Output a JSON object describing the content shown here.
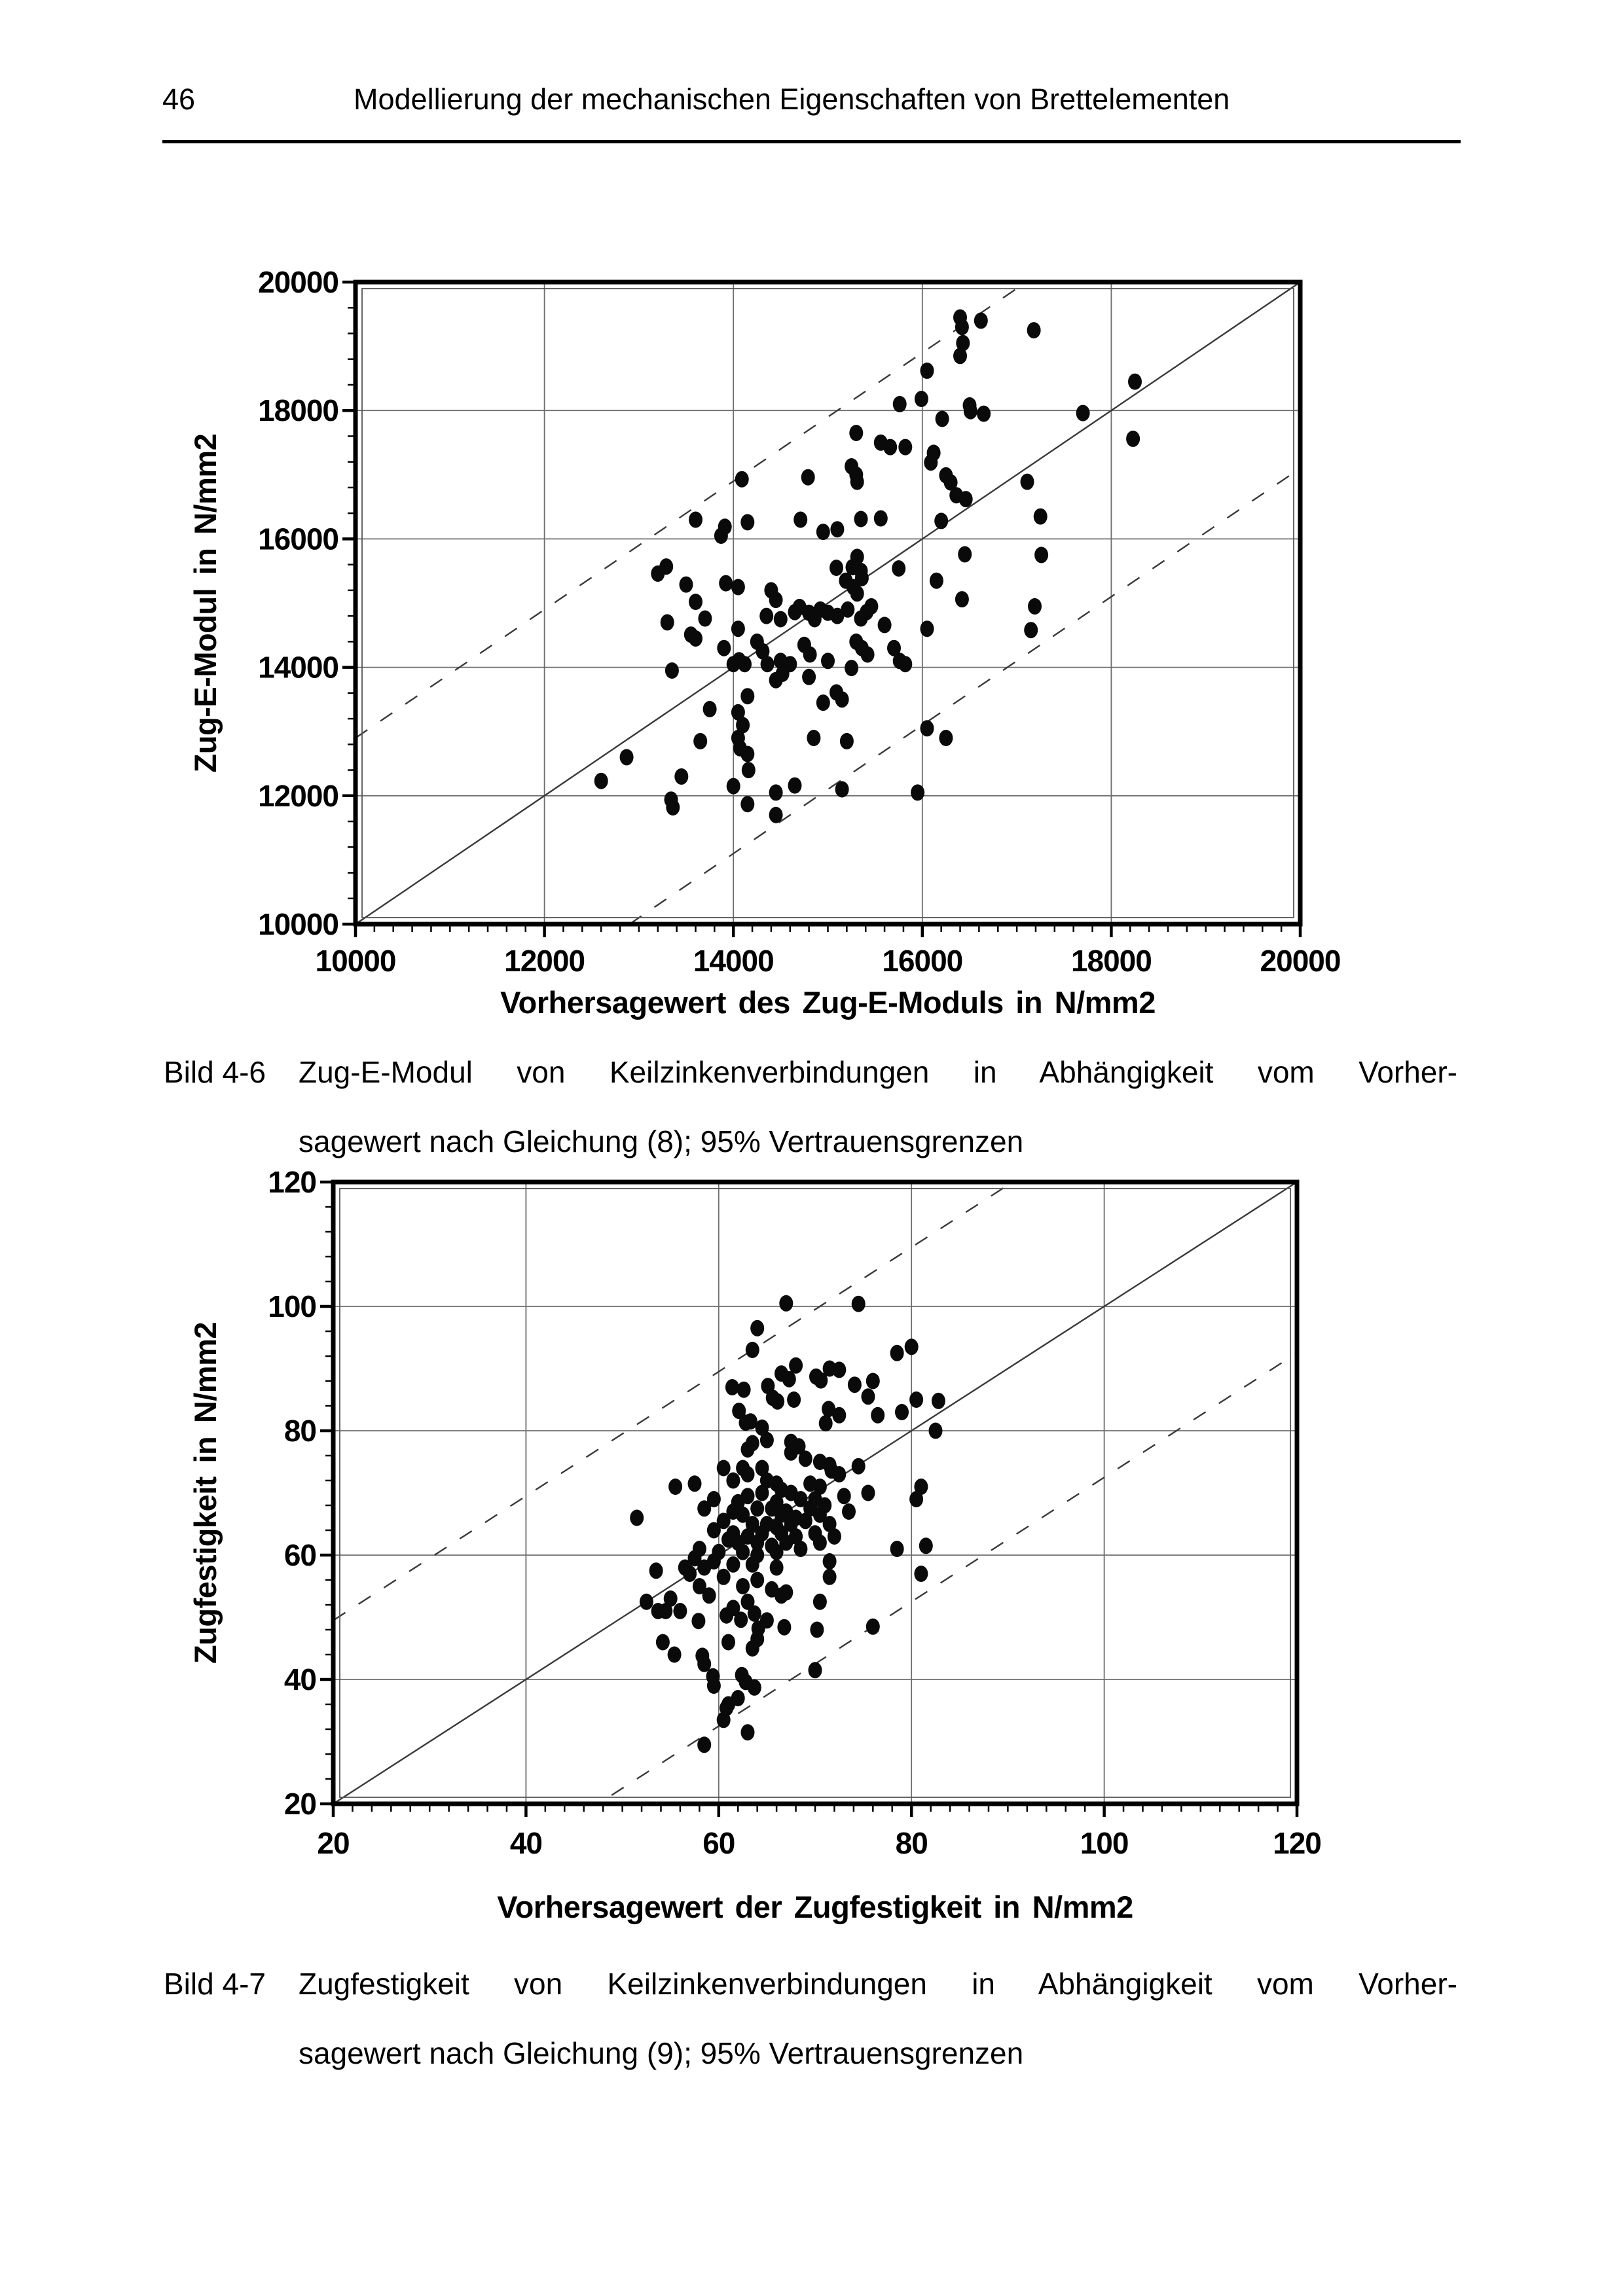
{
  "page": {
    "number": "46",
    "header_title": "Modellierung der mechanischen Eigenschaften von Brettelementen"
  },
  "figures": [
    {
      "label": "Bild 4-6",
      "caption_line1": "Zug-E-Modul von Keilzinkenverbindungen in Abhängigkeit vom Vorher-",
      "caption_line2": "sagewert nach Gleichung (8); 95% Vertrauensgrenzen"
    },
    {
      "label": "Bild 4-7",
      "caption_line1": "Zugfestigkeit von Keilzinkenverbindungen in Abhängigkeit vom Vorher-",
      "caption_line2": "sagewert nach Gleichung (9); 95% Vertrauensgrenzen"
    }
  ],
  "chart_data": [
    {
      "type": "scatter",
      "title": "",
      "xlabel": "Vorhersagewert des Zug-E-Moduls in N/mm2",
      "ylabel": "Zug-E-Modul in N/mm2",
      "xlim": [
        10000,
        20000
      ],
      "ylim": [
        10000,
        20000
      ],
      "xticks": [
        10000,
        12000,
        14000,
        16000,
        18000,
        20000
      ],
      "xtick_labels": [
        "10000",
        "12000",
        "14000",
        "16000",
        "18000",
        "20000"
      ],
      "yticks": [
        10000,
        12000,
        14000,
        16000,
        18000,
        20000
      ],
      "ytick_labels": [
        "10000",
        "12000",
        "14000",
        "16000",
        "18000",
        "20000"
      ],
      "x_minor_divisions": 10,
      "y_minor_divisions": 5,
      "grid": true,
      "legend": "none",
      "identity_line": true,
      "confidence_band": {
        "upper_offset": 2900,
        "lower_offset": -2900,
        "label": "95% Vertrauensgrenzen"
      },
      "marker_color": "#0a0a0a",
      "points": [
        [
          16400,
          19450
        ],
        [
          16620,
          19400
        ],
        [
          16420,
          19300
        ],
        [
          17180,
          19250
        ],
        [
          16430,
          19050
        ],
        [
          16400,
          18850
        ],
        [
          16050,
          18620
        ],
        [
          18250,
          18450
        ],
        [
          15760,
          18100
        ],
        [
          15990,
          18180
        ],
        [
          16500,
          18080
        ],
        [
          16650,
          17950
        ],
        [
          17700,
          17960
        ],
        [
          16510,
          17990
        ],
        [
          16210,
          17870
        ],
        [
          18230,
          17560
        ],
        [
          15300,
          17650
        ],
        [
          15560,
          17500
        ],
        [
          15660,
          17430
        ],
        [
          15820,
          17430
        ],
        [
          16120,
          17340
        ],
        [
          16090,
          17190
        ],
        [
          15250,
          17130
        ],
        [
          15300,
          17000
        ],
        [
          15310,
          16890
        ],
        [
          14090,
          16930
        ],
        [
          14790,
          16960
        ],
        [
          16250,
          16990
        ],
        [
          16300,
          16880
        ],
        [
          16360,
          16680
        ],
        [
          16460,
          16620
        ],
        [
          17110,
          16890
        ],
        [
          13600,
          16300
        ],
        [
          13910,
          16190
        ],
        [
          13870,
          16050
        ],
        [
          14150,
          16260
        ],
        [
          14710,
          16300
        ],
        [
          14950,
          16110
        ],
        [
          15350,
          16310
        ],
        [
          15560,
          16320
        ],
        [
          16200,
          16280
        ],
        [
          17250,
          16350
        ],
        [
          15100,
          16150
        ],
        [
          16450,
          15760
        ],
        [
          17260,
          15750
        ],
        [
          13290,
          15570
        ],
        [
          13200,
          15460
        ],
        [
          15090,
          15550
        ],
        [
          15260,
          15560
        ],
        [
          15310,
          15720
        ],
        [
          15350,
          15500
        ],
        [
          15750,
          15540
        ],
        [
          13500,
          15290
        ],
        [
          13920,
          15310
        ],
        [
          14400,
          15200
        ],
        [
          14450,
          15050
        ],
        [
          14700,
          14940
        ],
        [
          15190,
          15350
        ],
        [
          15270,
          15250
        ],
        [
          15310,
          15150
        ],
        [
          15360,
          15390
        ],
        [
          16150,
          15350
        ],
        [
          16420,
          15060
        ],
        [
          14050,
          15250
        ],
        [
          13600,
          15020
        ],
        [
          13300,
          14700
        ],
        [
          13550,
          14510
        ],
        [
          14350,
          14800
        ],
        [
          14500,
          14750
        ],
        [
          14650,
          14860
        ],
        [
          14800,
          14850
        ],
        [
          14860,
          14750
        ],
        [
          14920,
          14900
        ],
        [
          15000,
          14850
        ],
        [
          15100,
          14800
        ],
        [
          15210,
          14900
        ],
        [
          15350,
          14760
        ],
        [
          15410,
          14860
        ],
        [
          15460,
          14950
        ],
        [
          15600,
          14660
        ],
        [
          16050,
          14600
        ],
        [
          17190,
          14950
        ],
        [
          17150,
          14580
        ],
        [
          15700,
          14300
        ],
        [
          14050,
          14600
        ],
        [
          13700,
          14760
        ],
        [
          13600,
          14450
        ],
        [
          13900,
          14300
        ],
        [
          14000,
          14050
        ],
        [
          14060,
          14110
        ],
        [
          14120,
          14050
        ],
        [
          14250,
          14400
        ],
        [
          14310,
          14250
        ],
        [
          14360,
          14050
        ],
        [
          14500,
          14100
        ],
        [
          14750,
          14350
        ],
        [
          14810,
          14200
        ],
        [
          15000,
          14100
        ],
        [
          15300,
          14400
        ],
        [
          15360,
          14300
        ],
        [
          15420,
          14200
        ],
        [
          15250,
          13990
        ],
        [
          15760,
          14100
        ],
        [
          15820,
          14050
        ],
        [
          13350,
          13950
        ],
        [
          14600,
          14050
        ],
        [
          14450,
          13800
        ],
        [
          14520,
          13900
        ],
        [
          14800,
          13850
        ],
        [
          15090,
          13610
        ],
        [
          15150,
          13500
        ],
        [
          14150,
          13550
        ],
        [
          13750,
          13350
        ],
        [
          14050,
          13300
        ],
        [
          14950,
          13450
        ],
        [
          16050,
          13050
        ],
        [
          14100,
          13100
        ],
        [
          13650,
          12850
        ],
        [
          14050,
          12900
        ],
        [
          14070,
          12740
        ],
        [
          14850,
          12900
        ],
        [
          15200,
          12850
        ],
        [
          12870,
          12600
        ],
        [
          14150,
          12650
        ],
        [
          16250,
          12900
        ],
        [
          14160,
          12400
        ],
        [
          13450,
          12300
        ],
        [
          12600,
          12230
        ],
        [
          14000,
          12150
        ],
        [
          14650,
          12160
        ],
        [
          15150,
          12100
        ],
        [
          14450,
          12050
        ],
        [
          15950,
          12050
        ],
        [
          13340,
          11940
        ],
        [
          13360,
          11820
        ],
        [
          14150,
          11870
        ],
        [
          14450,
          11700
        ]
      ]
    },
    {
      "type": "scatter",
      "title": "",
      "xlabel": "Vorhersagewert der Zugfestigkeit in N/mm2",
      "ylabel": "Zugfestigkeit in N/mm2",
      "xlim": [
        20,
        120
      ],
      "ylim": [
        20,
        120
      ],
      "xticks": [
        20,
        40,
        60,
        80,
        100,
        120
      ],
      "xtick_labels": [
        "20",
        "40",
        "60",
        "80",
        "100",
        "120"
      ],
      "yticks": [
        20,
        40,
        60,
        80,
        100,
        120
      ],
      "ytick_labels": [
        "20",
        "40",
        "60",
        "80",
        "100",
        "120"
      ],
      "x_minor_divisions": 10,
      "y_minor_divisions": 5,
      "grid": true,
      "legend": "none",
      "identity_line": true,
      "confidence_band": {
        "upper_offset": 29.5,
        "lower_offset": -27.5,
        "label": "95% Vertrauensgrenzen"
      },
      "marker_color": "#0a0a0a",
      "points": [
        [
          67,
          100.5
        ],
        [
          74.5,
          100.4
        ],
        [
          64,
          96.5
        ],
        [
          63.5,
          93
        ],
        [
          80,
          93.5
        ],
        [
          78.5,
          92.5
        ],
        [
          68,
          90.5
        ],
        [
          71.5,
          90
        ],
        [
          72.5,
          89.8
        ],
        [
          66.5,
          89.2
        ],
        [
          67.3,
          88.3
        ],
        [
          70.1,
          88.7
        ],
        [
          70.6,
          88.1
        ],
        [
          74.1,
          87.4
        ],
        [
          76,
          88
        ],
        [
          61.4,
          87
        ],
        [
          62.6,
          86.6
        ],
        [
          65.1,
          87.2
        ],
        [
          82.8,
          84.8
        ],
        [
          65.6,
          85.3
        ],
        [
          66.1,
          84.7
        ],
        [
          67.8,
          85
        ],
        [
          75.5,
          85.5
        ],
        [
          80.5,
          85
        ],
        [
          62.1,
          83.2
        ],
        [
          71.4,
          83.5
        ],
        [
          79,
          83
        ],
        [
          62.8,
          81.3
        ],
        [
          63.3,
          81.5
        ],
        [
          71.1,
          81.2
        ],
        [
          64.5,
          80.5
        ],
        [
          82.5,
          80
        ],
        [
          72.5,
          82.5
        ],
        [
          76.5,
          82.5
        ],
        [
          65,
          78.5
        ],
        [
          63.5,
          78
        ],
        [
          67.5,
          78.2
        ],
        [
          68.3,
          77.5
        ],
        [
          63,
          77
        ],
        [
          67.5,
          76.5
        ],
        [
          69,
          75.5
        ],
        [
          70.5,
          75
        ],
        [
          62.5,
          74
        ],
        [
          64.5,
          74
        ],
        [
          71.5,
          74.5
        ],
        [
          71.7,
          73.6
        ],
        [
          60.5,
          74
        ],
        [
          63,
          73
        ],
        [
          72.5,
          73
        ],
        [
          74.5,
          74.3
        ],
        [
          55.5,
          71
        ],
        [
          57.5,
          71.5
        ],
        [
          61.5,
          72
        ],
        [
          65,
          72
        ],
        [
          66,
          71.5
        ],
        [
          69.5,
          71.5
        ],
        [
          70.5,
          71
        ],
        [
          81,
          71
        ],
        [
          66.5,
          70.5
        ],
        [
          67.5,
          70
        ],
        [
          64.5,
          70
        ],
        [
          63,
          69.5
        ],
        [
          59.5,
          69
        ],
        [
          62,
          68.5
        ],
        [
          66,
          68.5
        ],
        [
          68.5,
          69
        ],
        [
          70,
          69
        ],
        [
          73,
          69.5
        ],
        [
          75.5,
          70
        ],
        [
          80.5,
          69
        ],
        [
          64,
          67.5
        ],
        [
          65.5,
          67.5
        ],
        [
          67,
          67
        ],
        [
          69.5,
          67.5
        ],
        [
          71,
          68
        ],
        [
          58.5,
          67.5
        ],
        [
          61.5,
          67
        ],
        [
          62.5,
          66.5
        ],
        [
          66.5,
          66.5
        ],
        [
          68,
          66
        ],
        [
          70.5,
          66.5
        ],
        [
          73.5,
          67
        ],
        [
          51.5,
          66
        ],
        [
          60.5,
          65.5
        ],
        [
          63.5,
          65
        ],
        [
          65,
          65
        ],
        [
          66,
          64.5
        ],
        [
          67.5,
          65
        ],
        [
          69,
          65.5
        ],
        [
          71.5,
          65
        ],
        [
          59.5,
          64
        ],
        [
          61.5,
          63.5
        ],
        [
          63,
          63
        ],
        [
          64.5,
          63.5
        ],
        [
          66.5,
          63.5
        ],
        [
          68,
          63
        ],
        [
          70,
          63.5
        ],
        [
          61,
          62.5
        ],
        [
          62,
          62
        ],
        [
          64,
          62
        ],
        [
          65.5,
          61.5
        ],
        [
          67,
          62
        ],
        [
          70.5,
          62
        ],
        [
          72,
          63
        ],
        [
          81.5,
          61.5
        ],
        [
          58,
          61
        ],
        [
          60,
          60.5
        ],
        [
          62.5,
          60.5
        ],
        [
          64,
          60
        ],
        [
          66,
          60.5
        ],
        [
          68.5,
          61
        ],
        [
          78.5,
          61
        ],
        [
          57.5,
          59.5
        ],
        [
          59.5,
          59
        ],
        [
          61.5,
          58.5
        ],
        [
          56.5,
          58
        ],
        [
          58.5,
          58
        ],
        [
          63.5,
          58.5
        ],
        [
          66,
          58
        ],
        [
          71.5,
          59
        ],
        [
          81,
          57
        ],
        [
          53.5,
          57.5
        ],
        [
          57,
          57
        ],
        [
          60.5,
          56.5
        ],
        [
          64,
          56
        ],
        [
          71.5,
          56.5
        ],
        [
          58,
          55
        ],
        [
          62.5,
          55
        ],
        [
          65.5,
          54.5
        ],
        [
          67,
          54
        ],
        [
          55,
          53
        ],
        [
          59,
          53.5
        ],
        [
          63,
          52.5
        ],
        [
          66.5,
          53.5
        ],
        [
          70.5,
          52.5
        ],
        [
          52.5,
          52.5
        ],
        [
          54.5,
          51
        ],
        [
          61.5,
          51.5
        ],
        [
          56,
          51
        ],
        [
          63.7,
          50.6
        ],
        [
          60.8,
          50.3
        ],
        [
          53.7,
          51
        ],
        [
          65,
          49.5
        ],
        [
          57.9,
          49.4
        ],
        [
          62.3,
          49.6
        ],
        [
          64.1,
          48.2
        ],
        [
          66.8,
          48.4
        ],
        [
          70.2,
          48
        ],
        [
          76,
          48.5
        ],
        [
          54.2,
          46
        ],
        [
          61,
          46
        ],
        [
          64,
          46.5
        ],
        [
          63.5,
          45
        ],
        [
          55.4,
          44
        ],
        [
          58.3,
          43.8
        ],
        [
          58.5,
          42.5
        ],
        [
          70,
          41.5
        ],
        [
          59.4,
          40.5
        ],
        [
          62.4,
          40.7
        ],
        [
          62.8,
          39.6
        ],
        [
          63.7,
          38.7
        ],
        [
          59.5,
          39
        ],
        [
          60.8,
          35.4
        ],
        [
          62,
          37
        ],
        [
          61,
          36
        ],
        [
          60.5,
          33.5
        ],
        [
          63,
          31.5
        ],
        [
          58.5,
          29.5
        ]
      ]
    }
  ]
}
